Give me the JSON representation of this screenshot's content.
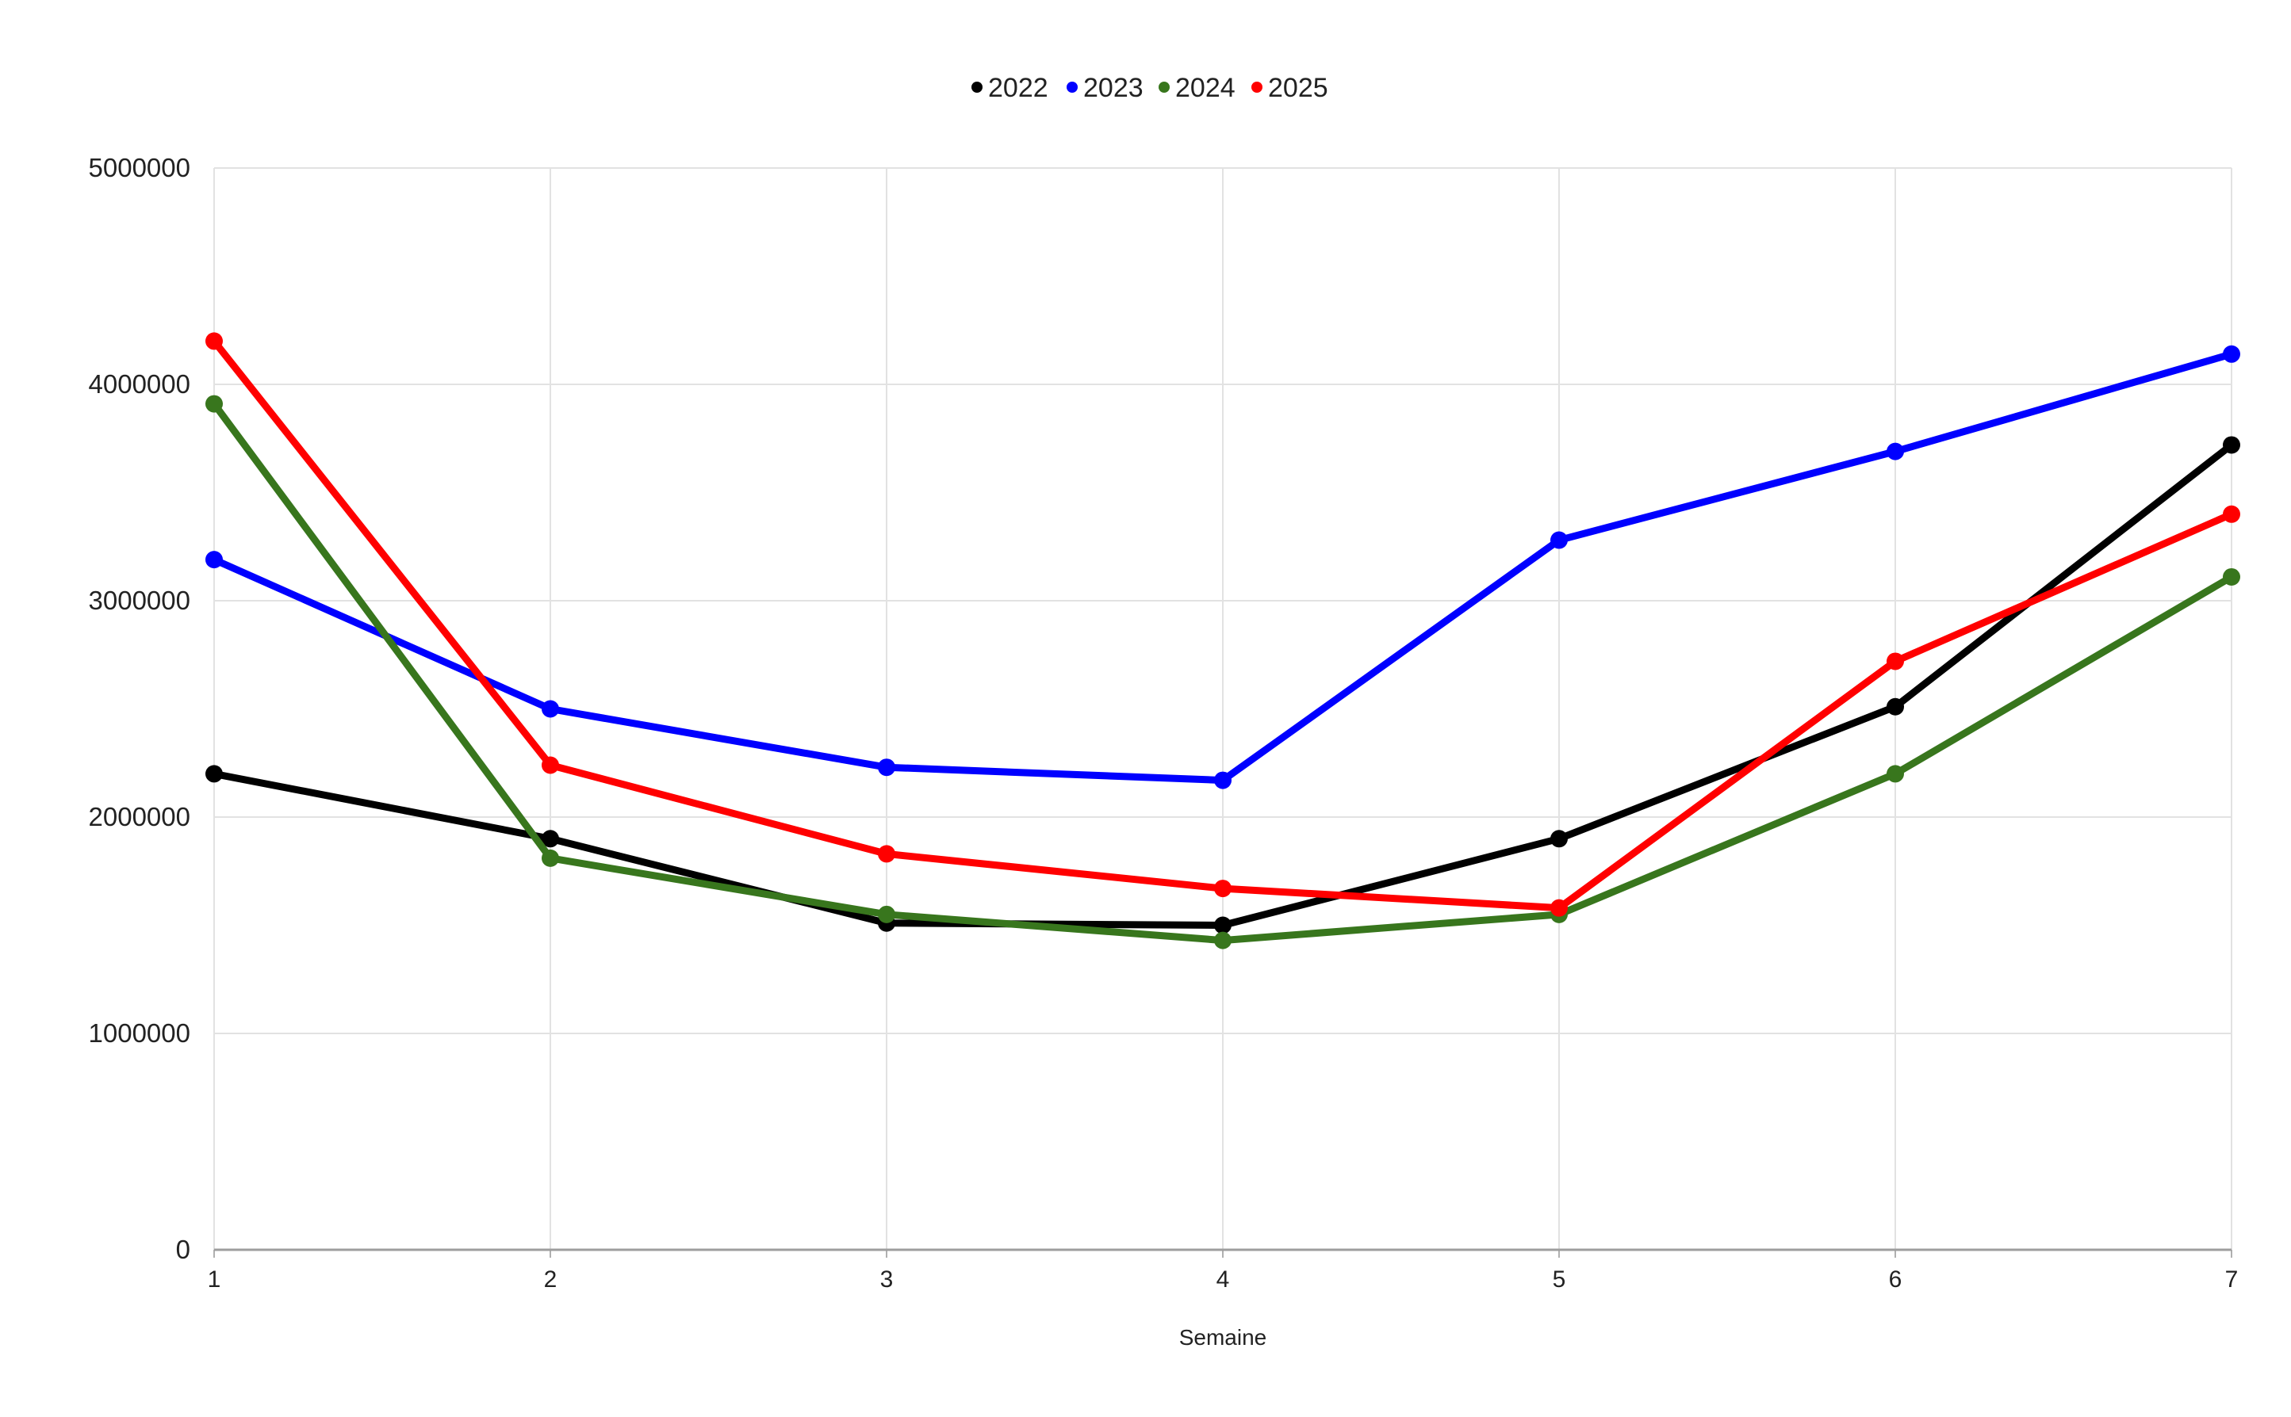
{
  "chart_data": {
    "type": "line",
    "title": "",
    "xlabel": "Semaine",
    "ylabel": "",
    "x": [
      1,
      2,
      3,
      4,
      5,
      6,
      7
    ],
    "x_tick_labels": [
      "1",
      "2",
      "3",
      "4",
      "5",
      "6",
      "7"
    ],
    "ylim": [
      0,
      5000000
    ],
    "y_ticks": [
      0,
      1000000,
      2000000,
      3000000,
      4000000,
      5000000
    ],
    "y_tick_labels": [
      "0",
      "1000000",
      "2000000",
      "3000000",
      "4000000",
      "5000000"
    ],
    "grid": true,
    "legend_position": "top-center",
    "series": [
      {
        "name": "2022",
        "color": "#000000",
        "values": [
          2200000,
          1900000,
          1510000,
          1500000,
          1900000,
          2510000,
          3720000
        ]
      },
      {
        "name": "2023",
        "color": "#0000ff",
        "values": [
          3190000,
          2500000,
          2230000,
          2170000,
          3280000,
          3690000,
          4140000
        ]
      },
      {
        "name": "2024",
        "color": "#38761d",
        "values": [
          3910000,
          1810000,
          1550000,
          1430000,
          1550000,
          2200000,
          3110000
        ]
      },
      {
        "name": "2025",
        "color": "#ff0000",
        "values": [
          4200000,
          2240000,
          1830000,
          1670000,
          1580000,
          2720000,
          3400000
        ]
      }
    ]
  }
}
